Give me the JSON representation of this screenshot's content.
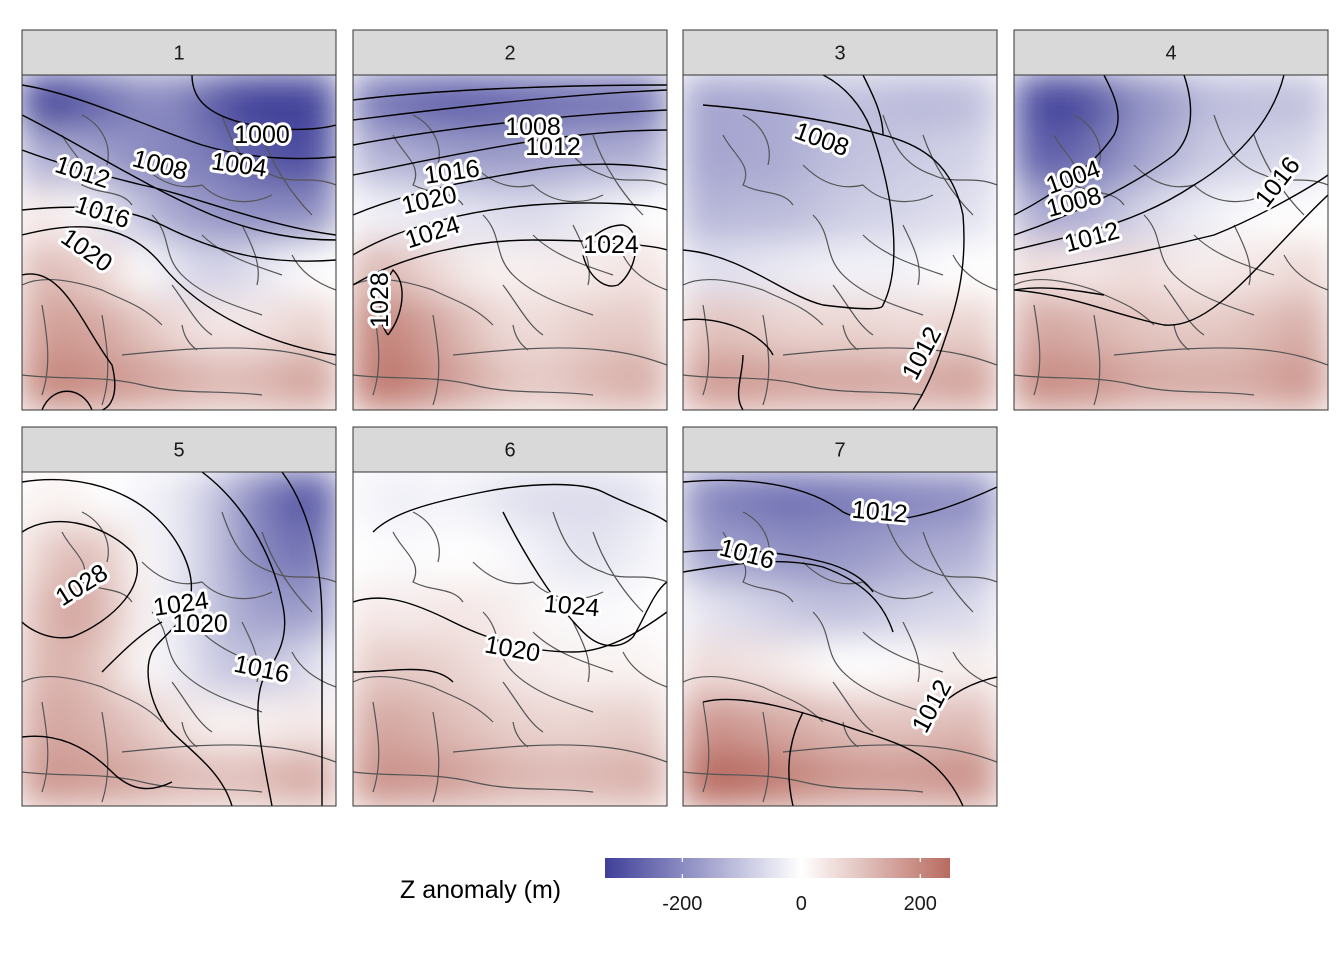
{
  "chart_data": {
    "type": "heatmap",
    "facets": [
      {
        "label": "1",
        "field": [
          [
            -340,
            -300,
            -250,
            -200,
            -210,
            -280,
            -330,
            -350,
            -330
          ],
          [
            -150,
            -140,
            -170,
            -200,
            -210,
            -230,
            -270,
            -300,
            -300
          ],
          [
            40,
            10,
            -50,
            -110,
            -160,
            -180,
            -200,
            -200,
            -200
          ],
          [
            120,
            100,
            60,
            0,
            -50,
            -80,
            -60,
            -20,
            0
          ],
          [
            160,
            160,
            140,
            100,
            60,
            40,
            40,
            60,
            80
          ],
          [
            200,
            200,
            180,
            160,
            140,
            120,
            120,
            140,
            160
          ]
        ],
        "contours": [
          {
            "label": "1000"
          },
          {
            "label": "1004"
          },
          {
            "label": "1008"
          },
          {
            "label": "1012"
          },
          {
            "label": "1016"
          },
          {
            "label": "1020"
          }
        ]
      },
      {
        "label": "2",
        "field": [
          [
            -230,
            -250,
            -270,
            -270,
            -260,
            -250,
            -240,
            -240,
            -230
          ],
          [
            -130,
            -140,
            -160,
            -170,
            -170,
            -160,
            -150,
            -140,
            -130
          ],
          [
            -20,
            -30,
            -40,
            -50,
            -60,
            -60,
            -40,
            -20,
            0
          ],
          [
            130,
            100,
            60,
            30,
            20,
            30,
            30,
            40,
            50
          ],
          [
            210,
            190,
            150,
            100,
            60,
            60,
            80,
            90,
            90
          ],
          [
            230,
            220,
            180,
            140,
            100,
            90,
            110,
            130,
            140
          ]
        ],
        "contours": [
          {
            "label": "1008"
          },
          {
            "label": "1012"
          },
          {
            "label": "1016"
          },
          {
            "label": "1020"
          },
          {
            "label": "1024"
          },
          {
            "label": "1024"
          },
          {
            "label": "1028"
          }
        ]
      },
      {
        "label": "3",
        "field": [
          [
            -160,
            -150,
            -150,
            -130,
            -110,
            -110,
            -120,
            -120,
            -110
          ],
          [
            -160,
            -150,
            -150,
            -130,
            -110,
            -100,
            -90,
            -80,
            -70
          ],
          [
            -130,
            -120,
            -120,
            -110,
            -90,
            -80,
            -70,
            -60,
            -50
          ],
          [
            -50,
            -50,
            -40,
            -30,
            -20,
            -20,
            -20,
            0,
            0
          ],
          [
            100,
            100,
            80,
            70,
            70,
            70,
            60,
            70,
            80
          ],
          [
            170,
            170,
            160,
            150,
            150,
            150,
            140,
            150,
            160
          ]
        ],
        "contours": [
          {
            "label": "1008"
          },
          {
            "label": "1012"
          }
        ]
      },
      {
        "label": "4",
        "field": [
          [
            -300,
            -330,
            -280,
            -200,
            -170,
            -120,
            -110,
            -110,
            -110
          ],
          [
            -270,
            -270,
            -230,
            -170,
            -130,
            -90,
            -80,
            -70,
            -60
          ],
          [
            -140,
            -150,
            -130,
            -80,
            -50,
            -30,
            -10,
            0,
            0
          ],
          [
            60,
            40,
            40,
            60,
            40,
            30,
            40,
            50,
            70
          ],
          [
            150,
            140,
            120,
            100,
            90,
            90,
            100,
            120,
            140
          ],
          [
            200,
            190,
            180,
            150,
            140,
            140,
            140,
            160,
            180
          ]
        ],
        "contours": [
          {
            "label": "1004"
          },
          {
            "label": "1008"
          },
          {
            "label": "1012"
          },
          {
            "label": "1016"
          }
        ]
      },
      {
        "label": "5",
        "field": [
          [
            20,
            20,
            0,
            -20,
            -40,
            -100,
            -190,
            -270,
            -290
          ],
          [
            70,
            120,
            90,
            10,
            -40,
            -100,
            -190,
            -230,
            -240
          ],
          [
            110,
            160,
            110,
            20,
            -40,
            -100,
            -160,
            -170,
            -170
          ],
          [
            120,
            130,
            80,
            10,
            -30,
            -90,
            -110,
            -90,
            -50
          ],
          [
            150,
            140,
            120,
            90,
            50,
            20,
            20,
            30,
            40
          ],
          [
            180,
            170,
            160,
            140,
            120,
            110,
            110,
            130,
            150
          ]
        ],
        "contours": [
          {
            "label": "1028"
          },
          {
            "label": "1024"
          },
          {
            "label": "1020"
          },
          {
            "label": "1016"
          }
        ]
      },
      {
        "label": "6",
        "field": [
          [
            -20,
            -30,
            -20,
            -30,
            -50,
            -60,
            -60,
            -60,
            -40
          ],
          [
            0,
            -10,
            0,
            0,
            -10,
            -30,
            -50,
            -40,
            -20
          ],
          [
            40,
            30,
            40,
            40,
            30,
            10,
            -10,
            -10,
            0
          ],
          [
            90,
            90,
            80,
            60,
            40,
            30,
            20,
            20,
            20
          ],
          [
            150,
            140,
            120,
            100,
            80,
            70,
            70,
            80,
            80
          ],
          [
            190,
            180,
            170,
            150,
            130,
            120,
            120,
            130,
            140
          ]
        ],
        "contours": [
          {
            "label": "1024"
          },
          {
            "label": "1020"
          }
        ]
      },
      {
        "label": "7",
        "field": [
          [
            -200,
            -220,
            -240,
            -240,
            -230,
            -220,
            -210,
            -200,
            -190
          ],
          [
            -160,
            -170,
            -180,
            -190,
            -180,
            -170,
            -150,
            -140,
            -130
          ],
          [
            -40,
            -60,
            -80,
            -100,
            -110,
            -100,
            -80,
            -70,
            -60
          ],
          [
            60,
            50,
            40,
            20,
            0,
            0,
            10,
            20,
            30
          ],
          [
            180,
            170,
            150,
            130,
            110,
            100,
            100,
            110,
            120
          ],
          [
            260,
            250,
            230,
            200,
            180,
            170,
            170,
            180,
            190
          ]
        ],
        "contours": [
          {
            "label": "1012"
          },
          {
            "label": "1016"
          },
          {
            "label": "1012"
          }
        ]
      }
    ],
    "legend": {
      "title": "Z anomaly (m)",
      "limits": [
        -330,
        250
      ],
      "ticks": [
        {
          "value": -200,
          "label": "-200"
        },
        {
          "value": 0,
          "label": "0"
        },
        {
          "value": 200,
          "label": "200"
        }
      ],
      "colors": {
        "low": "#3f3f99",
        "mid": "#ffffff",
        "high": "#b86b60"
      }
    }
  }
}
